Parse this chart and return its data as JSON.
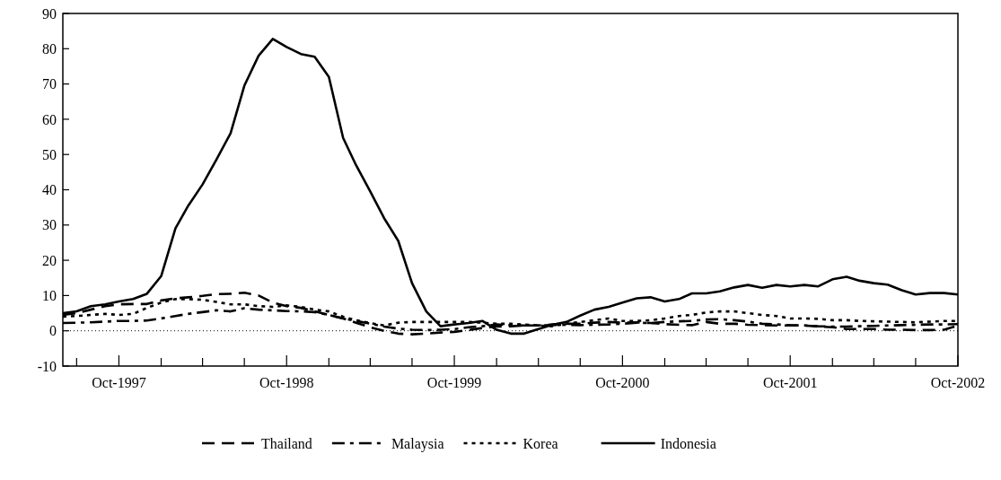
{
  "chart_data": {
    "type": "line",
    "x": [
      "1997-06",
      "1997-07",
      "1997-08",
      "1997-09",
      "1997-10",
      "1997-11",
      "1997-12",
      "1998-01",
      "1998-02",
      "1998-03",
      "1998-04",
      "1998-05",
      "1998-06",
      "1998-07",
      "1998-08",
      "1998-09",
      "1998-10",
      "1998-11",
      "1998-12",
      "1999-01",
      "1999-02",
      "1999-03",
      "1999-04",
      "1999-05",
      "1999-06",
      "1999-07",
      "1999-08",
      "1999-09",
      "1999-10",
      "1999-11",
      "1999-12",
      "2000-01",
      "2000-02",
      "2000-03",
      "2000-04",
      "2000-05",
      "2000-06",
      "2000-07",
      "2000-08",
      "2000-09",
      "2000-10",
      "2000-11",
      "2000-12",
      "2001-01",
      "2001-02",
      "2001-03",
      "2001-04",
      "2001-05",
      "2001-06",
      "2001-07",
      "2001-08",
      "2001-09",
      "2001-10",
      "2001-11",
      "2001-12",
      "2002-01",
      "2002-02",
      "2002-03",
      "2002-04",
      "2002-05",
      "2002-06",
      "2002-07",
      "2002-08",
      "2002-09",
      "2002-10"
    ],
    "series": [
      {
        "name": "Thailand",
        "color": "#000000",
        "line_style": "dashed",
        "values": [
          4.5,
          5,
          6,
          7,
          7.5,
          7.6,
          7.6,
          8.6,
          9.2,
          9.5,
          9.9,
          10.4,
          10.5,
          10.8,
          10,
          8,
          7,
          6.5,
          5.5,
          4.5,
          3.5,
          2.3,
          1,
          0,
          -0.8,
          -1,
          -0.8,
          -0.5,
          -0.3,
          0.2,
          0.8,
          1.2,
          1.3,
          1.5,
          1.5,
          1.8,
          2,
          2,
          2.3,
          2.5,
          2.3,
          2.4,
          2.2,
          1.9,
          1.7,
          1.6,
          2.5,
          2,
          2,
          1.7,
          1.6,
          1.5,
          1.5,
          1.5,
          1.2,
          1,
          0.5,
          0.5,
          0.5,
          0.3,
          0.3,
          0.2,
          0.2,
          0.3,
          1.5
        ]
      },
      {
        "name": "Malaysia",
        "color": "#000000",
        "line_style": "dashdot",
        "values": [
          2.2,
          2.3,
          2.4,
          2.6,
          2.8,
          2.8,
          2.9,
          3.5,
          4.2,
          4.8,
          5.3,
          5.8,
          5.5,
          6.4,
          6,
          5.8,
          5.6,
          5.5,
          5.3,
          4.5,
          3.5,
          2.8,
          2,
          1.2,
          0.6,
          0.3,
          0.2,
          0.3,
          0.5,
          1,
          1.3,
          1.8,
          1.6,
          1.5,
          1.5,
          1.6,
          1.7,
          1.6,
          1.7,
          1.8,
          2,
          2.3,
          2.2,
          2.5,
          2.7,
          2.8,
          3.2,
          3.3,
          3,
          2.6,
          2,
          1.8,
          1.6,
          1.5,
          1.3,
          1.2,
          1.2,
          1.3,
          1.4,
          1.5,
          1.6,
          1.7,
          1.8,
          1.8,
          1.9
        ]
      },
      {
        "name": "Korea",
        "color": "#000000",
        "line_style": "dotted",
        "values": [
          4,
          4.2,
          4.5,
          4.8,
          4.5,
          4.8,
          6.5,
          8,
          9,
          9,
          8.8,
          8.2,
          7.5,
          7.5,
          7,
          6.8,
          7.2,
          6.8,
          6,
          5.5,
          4,
          3,
          2.2,
          1.5,
          2.3,
          2.5,
          2.5,
          2.5,
          2.5,
          2.5,
          2.3,
          2,
          2,
          1.8,
          1.5,
          1.3,
          2,
          2.5,
          3,
          3.5,
          2.8,
          2.8,
          3,
          3.5,
          4.2,
          4.5,
          5.2,
          5.5,
          5.5,
          5,
          4.5,
          4.2,
          3.5,
          3.5,
          3.4,
          3,
          3,
          2.8,
          2.7,
          2.6,
          2.5,
          2.4,
          2.6,
          2.8,
          2.8
        ]
      },
      {
        "name": "Indonesia",
        "color": "#000000",
        "line_style": "solid",
        "values": [
          5,
          5.5,
          7,
          7.5,
          8.3,
          9,
          10.5,
          15.5,
          29,
          35.5,
          41.5,
          48.5,
          56,
          69.5,
          78,
          82.8,
          80.5,
          78.5,
          77.7,
          72,
          54.7,
          47,
          39.5,
          32,
          25.5,
          13.5,
          5.5,
          1.3,
          1.8,
          2.2,
          2.8,
          0.3,
          -0.8,
          -0.8,
          0.5,
          1.7,
          2.5,
          4.3,
          6,
          6.8,
          8,
          9.2,
          9.5,
          8.3,
          9,
          10.6,
          10.6,
          11.2,
          12.3,
          13,
          12.2,
          13,
          12.6,
          13,
          12.6,
          14.6,
          15.3,
          14.2,
          13.5,
          13.1,
          11.5,
          10.3,
          10.7,
          10.7,
          10.3
        ]
      }
    ],
    "xlim": [
      "1997-06",
      "2002-10"
    ],
    "xticks": [
      {
        "value": "1997-07",
        "label": null
      },
      {
        "value": "1997-10",
        "label": "Oct-1997"
      },
      {
        "value": "1998-01",
        "label": null
      },
      {
        "value": "1998-04",
        "label": null
      },
      {
        "value": "1998-07",
        "label": null
      },
      {
        "value": "1998-10",
        "label": "Oct-1998"
      },
      {
        "value": "1999-01",
        "label": null
      },
      {
        "value": "1999-04",
        "label": null
      },
      {
        "value": "1999-07",
        "label": null
      },
      {
        "value": "1999-10",
        "label": "Oct-1999"
      },
      {
        "value": "2000-01",
        "label": null
      },
      {
        "value": "2000-04",
        "label": null
      },
      {
        "value": "2000-07",
        "label": null
      },
      {
        "value": "2000-10",
        "label": "Oct-2000"
      },
      {
        "value": "2001-01",
        "label": null
      },
      {
        "value": "2001-04",
        "label": null
      },
      {
        "value": "2001-07",
        "label": null
      },
      {
        "value": "2001-10",
        "label": "Oct-2001"
      },
      {
        "value": "2002-01",
        "label": null
      },
      {
        "value": "2002-04",
        "label": null
      },
      {
        "value": "2002-07",
        "label": null
      },
      {
        "value": "2002-10",
        "label": "Oct-2002"
      }
    ],
    "ylim": [
      -10,
      90
    ],
    "yticks": [
      -10,
      0,
      10,
      20,
      30,
      40,
      50,
      60,
      70,
      80,
      90
    ],
    "ref_lines": [
      {
        "axis": "y",
        "value": 0,
        "label": null,
        "color": "#000000",
        "line_style": "dotted"
      }
    ],
    "grid": false,
    "legend": "bottom",
    "marker": "none"
  }
}
